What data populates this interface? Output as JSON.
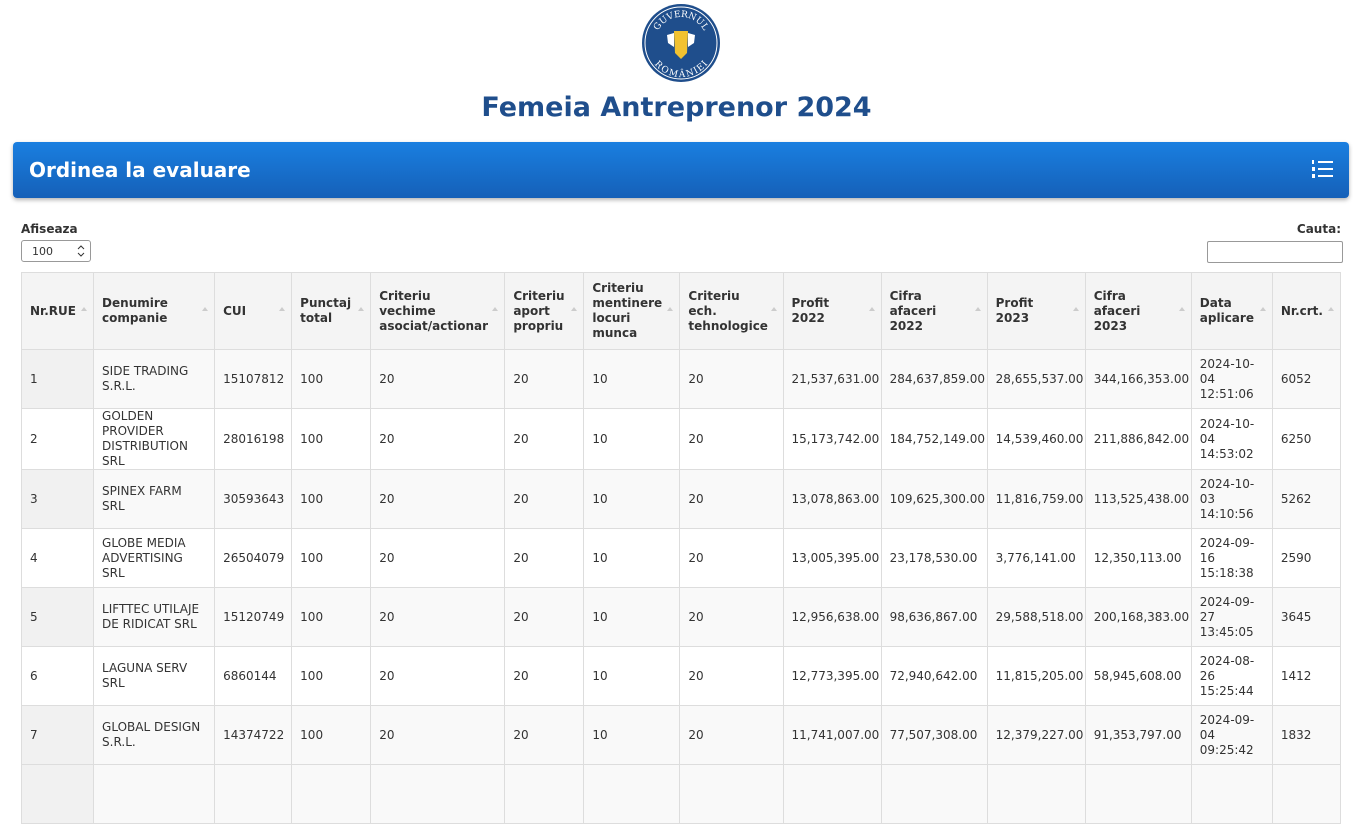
{
  "header": {
    "logo": {
      "top": "GUVERNUL",
      "bottom": "ROMÂNIEI"
    },
    "title": "Femeia Antreprenor 2024"
  },
  "banner": {
    "title": "Ordinea la evaluare"
  },
  "controls": {
    "show_label": "Afiseaza",
    "show_value": "100",
    "search_label": "Cauta:"
  },
  "table": {
    "headers": [
      "Nr.RUE",
      "Denumire companie",
      "CUI",
      "Punctaj total",
      "Criteriu vechime asociat/actionar",
      "Criteriu aport propriu",
      "Criteriu mentinere locuri munca",
      "Criteriu ech. tehnologice",
      "Profit 2022",
      "Cifra afaceri 2022",
      "Profit 2023",
      "Cifra afaceri 2023",
      "Data aplicare",
      "Nr.crt."
    ],
    "rows": [
      [
        "1",
        "SIDE TRADING S.R.L.",
        "15107812",
        "100",
        "20",
        "20",
        "10",
        "20",
        "21,537,631.00",
        "284,637,859.00",
        "28,655,537.00",
        "344,166,353.00",
        "2024-10-04 12:51:06",
        "6052"
      ],
      [
        "2",
        "GOLDEN PROVIDER DISTRIBUTION SRL",
        "28016198",
        "100",
        "20",
        "20",
        "10",
        "20",
        "15,173,742.00",
        "184,752,149.00",
        "14,539,460.00",
        "211,886,842.00",
        "2024-10-04 14:53:02",
        "6250"
      ],
      [
        "3",
        "SPINEX FARM SRL",
        "30593643",
        "100",
        "20",
        "20",
        "10",
        "20",
        "13,078,863.00",
        "109,625,300.00",
        "11,816,759.00",
        "113,525,438.00",
        "2024-10-03 14:10:56",
        "5262"
      ],
      [
        "4",
        "GLOBE MEDIA ADVERTISING SRL",
        "26504079",
        "100",
        "20",
        "20",
        "10",
        "20",
        "13,005,395.00",
        "23,178,530.00",
        "3,776,141.00",
        "12,350,113.00",
        "2024-09-16 15:18:38",
        "2590"
      ],
      [
        "5",
        "LIFTTEC UTILAJE DE RIDICAT SRL",
        "15120749",
        "100",
        "20",
        "20",
        "10",
        "20",
        "12,956,638.00",
        "98,636,867.00",
        "29,588,518.00",
        "200,168,383.00",
        "2024-09-27 13:45:05",
        "3645"
      ],
      [
        "6",
        "LAGUNA SERV SRL",
        "6860144",
        "100",
        "20",
        "20",
        "10",
        "20",
        "12,773,395.00",
        "72,940,642.00",
        "11,815,205.00",
        "58,945,608.00",
        "2024-08-26 15:25:44",
        "1412"
      ],
      [
        "7",
        "GLOBAL DESIGN S.R.L.",
        "14374722",
        "100",
        "20",
        "20",
        "10",
        "20",
        "11,741,007.00",
        "77,507,308.00",
        "12,379,227.00",
        "91,353,797.00",
        "2024-09-04 09:25:42",
        "1832"
      ]
    ]
  }
}
